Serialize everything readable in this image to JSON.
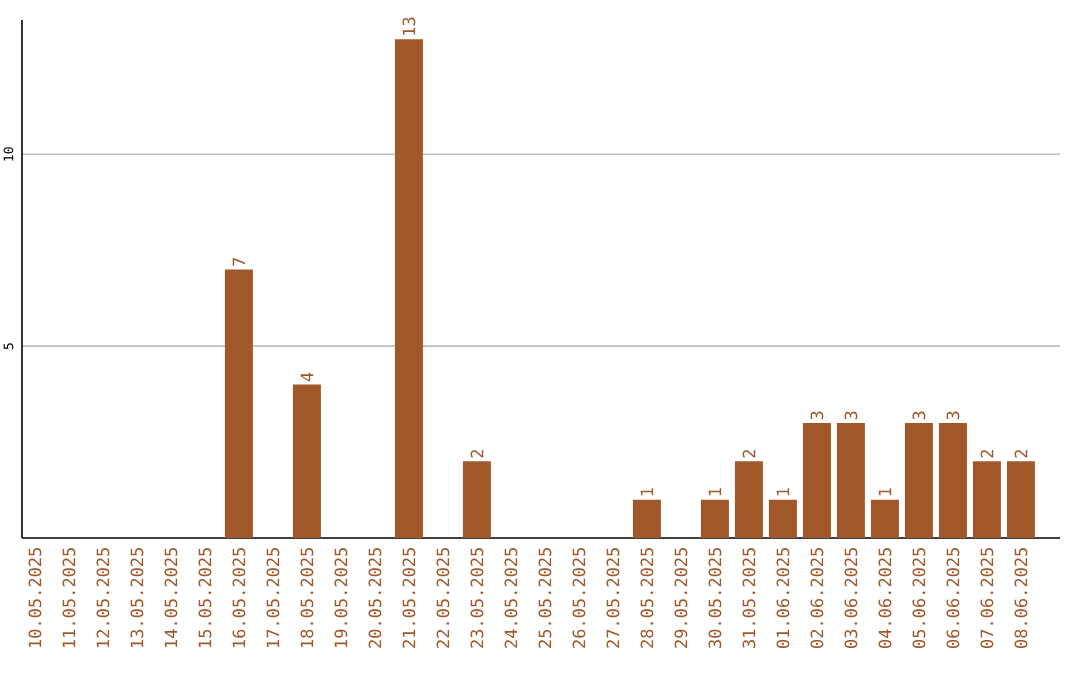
{
  "chart_data": {
    "type": "bar",
    "categories": [
      "10.05.2025",
      "11.05.2025",
      "12.05.2025",
      "13.05.2025",
      "14.05.2025",
      "15.05.2025",
      "16.05.2025",
      "17.05.2025",
      "18.05.2025",
      "19.05.2025",
      "20.05.2025",
      "21.05.2025",
      "22.05.2025",
      "23.05.2025",
      "24.05.2025",
      "25.05.2025",
      "26.05.2025",
      "27.05.2025",
      "28.05.2025",
      "29.05.2025",
      "30.05.2025",
      "31.05.2025",
      "01.06.2025",
      "02.06.2025",
      "03.06.2025",
      "04.06.2025",
      "05.06.2025",
      "06.06.2025",
      "07.06.2025",
      "08.06.2025"
    ],
    "values": [
      0,
      0,
      0,
      0,
      0,
      0,
      7,
      0,
      4,
      0,
      0,
      13,
      0,
      2,
      0,
      0,
      0,
      0,
      1,
      0,
      1,
      2,
      1,
      3,
      3,
      1,
      3,
      3,
      2,
      2
    ],
    "value_labels": [
      null,
      null,
      null,
      null,
      null,
      null,
      "7",
      null,
      "4",
      null,
      null,
      "13",
      null,
      "2",
      null,
      null,
      null,
      null,
      "1",
      null,
      "1",
      "2",
      "1",
      "3",
      "3",
      "1",
      "3",
      "3",
      "2",
      "2"
    ],
    "color": "#a0582a",
    "ylim": [
      0,
      13.5
    ],
    "yticks": [
      5,
      10
    ],
    "grid": "y"
  }
}
